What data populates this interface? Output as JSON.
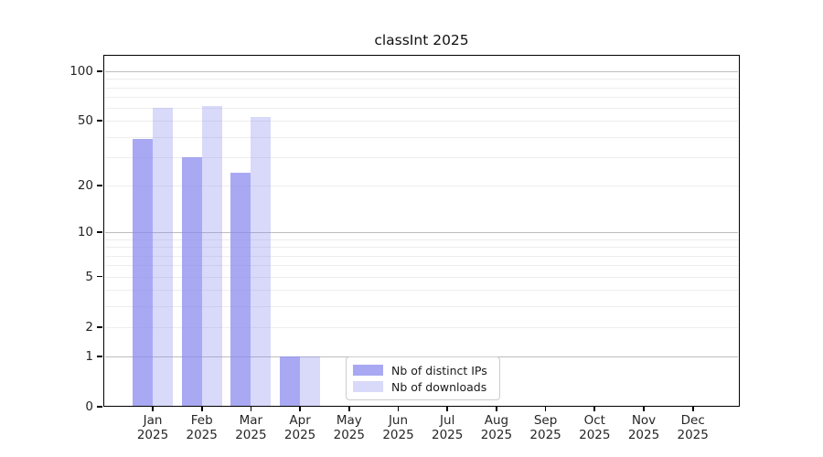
{
  "title": "classInt 2025",
  "chart_data": {
    "type": "bar",
    "title": "classInt 2025",
    "x_months": [
      "Jan",
      "Feb",
      "Mar",
      "Apr",
      "May",
      "Jun",
      "Jul",
      "Aug",
      "Sep",
      "Oct",
      "Nov",
      "Dec"
    ],
    "x_year": "2025",
    "series": [
      {
        "name": "Nb of distinct IPs",
        "color": "rgba(136,136,238,0.72)",
        "values": [
          39,
          30,
          24,
          1,
          0,
          0,
          0,
          0,
          0,
          0,
          0,
          0
        ]
      },
      {
        "name": "Nb of downloads",
        "color": "rgba(136,136,238,0.32)",
        "values": [
          60,
          62,
          53,
          1,
          0,
          0,
          0,
          0,
          0,
          0,
          0,
          0
        ]
      }
    ],
    "y_scale": "log1p",
    "ylim": [
      0,
      126
    ],
    "y_tick_labels": [
      "0",
      "1",
      "2",
      "5",
      "10",
      "20",
      "50",
      "100"
    ],
    "y_tick_values": [
      0,
      1,
      2,
      5,
      10,
      20,
      50,
      100
    ],
    "y_major_gridlines": [
      1,
      10,
      100
    ],
    "y_minor_gridlines": [
      2,
      3,
      4,
      5,
      6,
      7,
      8,
      9,
      20,
      30,
      40,
      50,
      60,
      70,
      80,
      90
    ],
    "legend": {
      "entries": [
        {
          "label": "Nb of distinct IPs",
          "color": "rgba(136,136,238,0.72)"
        },
        {
          "label": "Nb of downloads",
          "color": "rgba(136,136,238,0.32)"
        }
      ]
    },
    "colors": {
      "bar_base": "#8888ee",
      "major_grid": "#bdbdbd",
      "minor_grid": "#ededed",
      "axis": "#000000",
      "text": "#262626"
    }
  }
}
